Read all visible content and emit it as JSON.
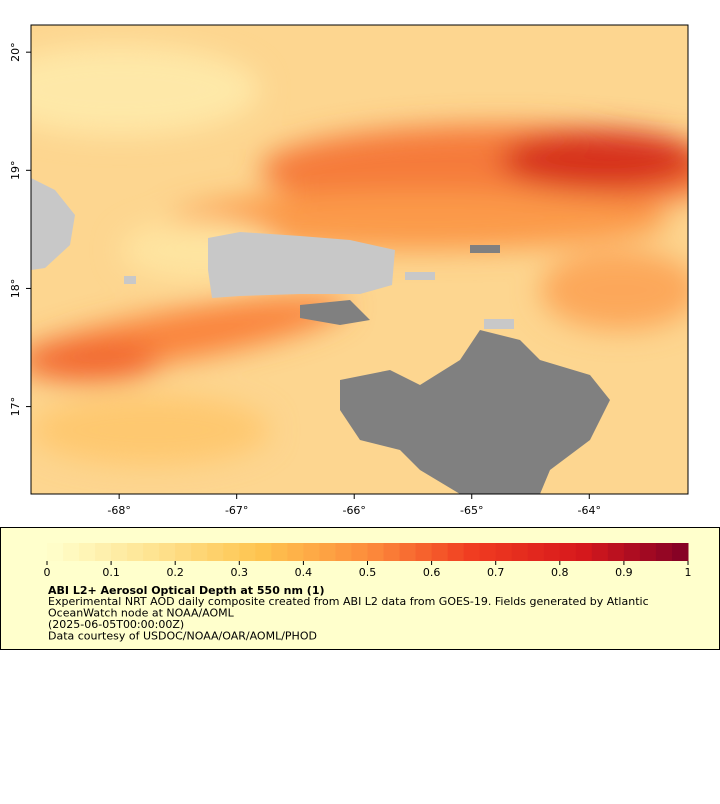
{
  "map": {
    "xlim": [
      -68.75,
      -63.16
    ],
    "ylim": [
      16.26,
      20.23
    ],
    "xticks": [
      {
        "value": -68,
        "label": "-68°"
      },
      {
        "value": -67,
        "label": "-67°"
      },
      {
        "value": -66,
        "label": "-66°"
      },
      {
        "value": -65,
        "label": "-65°"
      },
      {
        "value": -64,
        "label": "-64°"
      }
    ],
    "yticks": [
      {
        "value": 17,
        "label": "17°"
      },
      {
        "value": 18,
        "label": "18°"
      },
      {
        "value": 19,
        "label": "19°"
      },
      {
        "value": 20,
        "label": "20°"
      }
    ]
  },
  "colorbar": {
    "lim": [
      0,
      1
    ],
    "ticks": [
      0,
      0.1,
      0.2,
      0.3,
      0.4,
      0.5,
      0.6,
      0.7,
      0.8,
      0.9,
      1
    ],
    "colors": [
      "#ffffcc",
      "#fee391",
      "#fec44f",
      "#fd8d3c",
      "#f03b20",
      "#d7191c",
      "#800026"
    ]
  },
  "caption": {
    "title": "ABI L2+ Aerosol Optical Depth at 550 nm (1)",
    "lines": [
      "Experimental NRT AOD daily composite created from ABI L2 data from GOES-19. Fields generated by Atlantic",
      "OceanWatch node at NOAA/AOML",
      "(2025-06-05T00:00:00Z)",
      "Data courtesy of USDOC/NOAA/OAR/AOML/PHOD"
    ]
  }
}
